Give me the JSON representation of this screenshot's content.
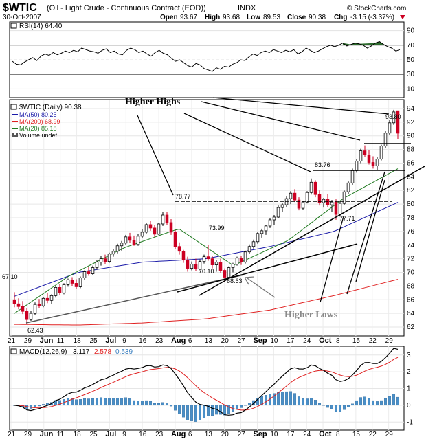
{
  "header": {
    "symbol_title": "$WTIC",
    "symbol_desc": "(Oil - Light Crude - Continuous Contract (EOD))",
    "exchange": "INDX",
    "watermark": "© StockCharts.com",
    "date": "30-Oct-2007",
    "open_label": "Open",
    "open_value": "93.67",
    "high_label": "High",
    "high_value": "93.68",
    "low_label": "Low",
    "low_value": "89.53",
    "close_label": "Close",
    "close_value": "90.38",
    "chg_label": "Chg",
    "chg_value": "-3.15 (-3.37%)"
  },
  "colors": {
    "up_candle": "#ffffff",
    "down_candle": "#cc0022",
    "ma50": "#1a1aa8",
    "ma200": "#e02020",
    "ma20": "#1f7a1f",
    "rsi_fill": "#2e6b2e",
    "macd_line": "#000000",
    "signal_line": "#e02020",
    "histogram": "#4a8fc8"
  },
  "rsi": {
    "label": "RSI(14) 64.40",
    "levels": [
      "90",
      "70",
      "50",
      "30",
      "10"
    ],
    "values": [
      48,
      44,
      43,
      47,
      50,
      53,
      49,
      55,
      58,
      56,
      60,
      57,
      59,
      62,
      60,
      63,
      61,
      66,
      64,
      62,
      61,
      59,
      63,
      65,
      60,
      62,
      58,
      57,
      63,
      66,
      64,
      60,
      62,
      58,
      55,
      60,
      63,
      59,
      57,
      52,
      48,
      50,
      46,
      42,
      40,
      45,
      43,
      38,
      36,
      34,
      39,
      37,
      41,
      40,
      44,
      46,
      50,
      49,
      54,
      58,
      56,
      60,
      62,
      60,
      64,
      62,
      60,
      63,
      61,
      64,
      58,
      61,
      66,
      63,
      60,
      62,
      65,
      68,
      70,
      68,
      70,
      73,
      69,
      71,
      73,
      72,
      70,
      66,
      69,
      73,
      75,
      71,
      68,
      66,
      62,
      64
    ]
  },
  "main": {
    "legend": {
      "price": "$WTIC (Daily) 90.38",
      "ma50": "MA(50) 80.25",
      "ma200": "MA(200) 68.99",
      "ma20": "MA(20) 85.18",
      "volume": "Volume undef"
    },
    "y_ticks": [
      "94",
      "92",
      "90",
      "88",
      "86",
      "84",
      "82",
      "80",
      "78",
      "76",
      "74",
      "72",
      "70",
      "68",
      "66",
      "64",
      "62"
    ],
    "annotations": {
      "higher_highs": "Higher Highs",
      "higher_lows": "Higher Lows"
    },
    "price_labels": [
      "93.80",
      "83.76",
      "78.77",
      "73.99",
      "70.10",
      "68.63",
      "67.10",
      "62.43",
      "77.71"
    ]
  },
  "x_axis": {
    "labels": [
      "21",
      "29",
      "Jun",
      "11",
      "18",
      "25",
      "Jul",
      "9",
      "16",
      "23",
      "Aug",
      "6",
      "13",
      "20",
      "27",
      "Sep",
      "10",
      "17",
      "24",
      "Oct",
      "8",
      "15",
      "22",
      "29"
    ]
  },
  "macd": {
    "label_prefix": "MACD(12,26,9)",
    "macd_value": "3.117",
    "signal_value": "2.578",
    "hist_value": "0.539",
    "levels": [
      "3",
      "2",
      "1",
      "0",
      "-1"
    ]
  },
  "chart_data": {
    "type": "candlestick",
    "title": "$WTIC (Oil - Light Crude - Continuous Contract (EOD)) INDX",
    "ylim": [
      61,
      95
    ],
    "dates_first_last": [
      "21-May-2007",
      "30-Oct-2007"
    ],
    "candles": [
      [
        66.0,
        67.1,
        64.9,
        65.4
      ],
      [
        65.4,
        66.2,
        64.6,
        65.0
      ],
      [
        65.0,
        65.8,
        63.9,
        64.3
      ],
      [
        64.3,
        64.8,
        62.4,
        63.1
      ],
      [
        63.1,
        64.4,
        62.9,
        64.0
      ],
      [
        64.0,
        65.6,
        63.8,
        65.3
      ],
      [
        65.3,
        66.1,
        64.8,
        65.1
      ],
      [
        65.1,
        66.4,
        64.9,
        66.2
      ],
      [
        66.2,
        67.0,
        65.5,
        65.9
      ],
      [
        65.9,
        66.8,
        65.4,
        66.6
      ],
      [
        66.6,
        68.0,
        66.3,
        67.8
      ],
      [
        67.8,
        68.3,
        66.7,
        67.0
      ],
      [
        67.0,
        68.4,
        66.8,
        68.2
      ],
      [
        68.2,
        69.1,
        67.9,
        68.9
      ],
      [
        68.9,
        69.3,
        68.0,
        68.4
      ],
      [
        68.4,
        69.0,
        67.6,
        67.9
      ],
      [
        67.9,
        69.4,
        67.7,
        69.2
      ],
      [
        69.2,
        70.3,
        68.9,
        70.1
      ],
      [
        70.1,
        70.8,
        69.5,
        69.8
      ],
      [
        69.8,
        71.0,
        69.6,
        70.7
      ],
      [
        70.7,
        71.8,
        70.4,
        71.5
      ],
      [
        71.5,
        72.4,
        71.0,
        72.0
      ],
      [
        72.0,
        72.6,
        71.2,
        71.6
      ],
      [
        71.6,
        72.9,
        71.4,
        72.7
      ],
      [
        72.7,
        73.4,
        72.3,
        73.1
      ],
      [
        73.1,
        74.2,
        72.8,
        73.9
      ],
      [
        73.9,
        74.6,
        73.2,
        74.3
      ],
      [
        74.3,
        75.5,
        74.0,
        75.2
      ],
      [
        75.2,
        75.8,
        74.3,
        74.7
      ],
      [
        74.7,
        75.4,
        73.9,
        74.1
      ],
      [
        74.1,
        75.6,
        73.9,
        75.3
      ],
      [
        75.3,
        76.3,
        75.0,
        75.9
      ],
      [
        75.9,
        77.3,
        75.7,
        77.0
      ],
      [
        77.0,
        77.6,
        76.1,
        76.5
      ],
      [
        76.5,
        76.9,
        75.2,
        75.6
      ],
      [
        75.6,
        77.3,
        75.5,
        77.1
      ],
      [
        77.1,
        78.8,
        76.8,
        78.4
      ],
      [
        78.4,
        78.8,
        77.0,
        77.3
      ],
      [
        77.3,
        77.8,
        75.5,
        75.9
      ],
      [
        75.9,
        76.2,
        73.4,
        73.8
      ],
      [
        73.8,
        74.4,
        72.6,
        73.1
      ],
      [
        73.1,
        73.3,
        71.4,
        71.8
      ],
      [
        71.8,
        72.3,
        70.1,
        70.6
      ],
      [
        70.6,
        71.6,
        70.3,
        71.2
      ],
      [
        71.2,
        72.0,
        70.2,
        70.5
      ],
      [
        70.5,
        71.9,
        70.3,
        71.6
      ],
      [
        71.6,
        72.6,
        71.3,
        72.3
      ],
      [
        72.3,
        73.99,
        71.7,
        72.0
      ],
      [
        72.0,
        72.4,
        70.6,
        71.1
      ],
      [
        71.1,
        71.8,
        70.1,
        71.5
      ],
      [
        71.5,
        72.0,
        69.9,
        70.3
      ],
      [
        70.3,
        70.6,
        68.63,
        69.3
      ],
      [
        69.3,
        70.9,
        69.1,
        70.7
      ],
      [
        70.7,
        71.4,
        70.0,
        71.2
      ],
      [
        71.2,
        72.3,
        71.0,
        72.1
      ],
      [
        72.1,
        72.4,
        71.1,
        71.5
      ],
      [
        71.5,
        73.2,
        71.3,
        73.0
      ],
      [
        73.0,
        74.1,
        72.7,
        73.8
      ],
      [
        73.8,
        74.8,
        73.5,
        74.5
      ],
      [
        74.5,
        75.9,
        74.2,
        75.7
      ],
      [
        75.7,
        76.4,
        75.1,
        76.1
      ],
      [
        76.1,
        77.0,
        75.5,
        76.8
      ],
      [
        76.8,
        78.0,
        76.5,
        77.7
      ],
      [
        77.7,
        78.4,
        77.0,
        78.1
      ],
      [
        78.1,
        79.8,
        77.9,
        79.5
      ],
      [
        79.5,
        80.2,
        78.8,
        79.9
      ],
      [
        79.9,
        81.1,
        79.6,
        80.8
      ],
      [
        80.8,
        81.9,
        80.0,
        81.6
      ],
      [
        81.6,
        82.2,
        80.3,
        80.6
      ],
      [
        80.6,
        81.0,
        79.1,
        79.4
      ],
      [
        79.4,
        80.5,
        79.2,
        80.3
      ],
      [
        80.3,
        81.9,
        80.1,
        81.7
      ],
      [
        81.7,
        83.76,
        81.4,
        83.2
      ],
      [
        83.2,
        83.5,
        81.0,
        81.4
      ],
      [
        81.4,
        82.0,
        79.8,
        80.2
      ],
      [
        80.2,
        80.9,
        79.5,
        80.7
      ],
      [
        80.7,
        81.5,
        79.6,
        79.9
      ],
      [
        79.9,
        80.6,
        78.9,
        80.3
      ],
      [
        80.3,
        80.7,
        77.71,
        78.5
      ],
      [
        78.5,
        80.4,
        78.3,
        80.1
      ],
      [
        80.1,
        82.0,
        79.9,
        81.8
      ],
      [
        81.8,
        83.4,
        81.5,
        83.1
      ],
      [
        83.1,
        85.2,
        82.8,
        84.9
      ],
      [
        84.9,
        86.6,
        84.6,
        86.3
      ],
      [
        86.3,
        88.1,
        86.0,
        87.8
      ],
      [
        87.8,
        88.6,
        86.9,
        87.2
      ],
      [
        87.2,
        87.9,
        85.8,
        86.1
      ],
      [
        86.1,
        87.0,
        85.2,
        85.6
      ],
      [
        85.6,
        86.9,
        85.0,
        86.6
      ],
      [
        86.6,
        88.7,
        86.4,
        88.5
      ],
      [
        88.5,
        90.7,
        88.2,
        90.4
      ],
      [
        90.4,
        92.3,
        90.1,
        91.9
      ],
      [
        91.9,
        93.8,
        91.6,
        93.5
      ],
      [
        93.67,
        93.68,
        89.53,
        90.38
      ]
    ],
    "series": [
      {
        "name": "MA(50)",
        "last": 80.25,
        "values": [
          66.5,
          70.0,
          71.5,
          72.0,
          73.8,
          76.0,
          80.25
        ]
      },
      {
        "name": "MA(200)",
        "last": 68.99,
        "values": [
          62.4,
          62.3,
          62.6,
          63.2,
          64.5,
          66.6,
          68.99
        ]
      },
      {
        "name": "MA(20)",
        "last": 85.18,
        "values": [
          64.0,
          69.5,
          73.6,
          76.4,
          71.0,
          74.7,
          80.8,
          85.18
        ]
      }
    ],
    "macd": {
      "macd": 3.117,
      "signal": 2.578,
      "histogram": 0.539
    }
  }
}
